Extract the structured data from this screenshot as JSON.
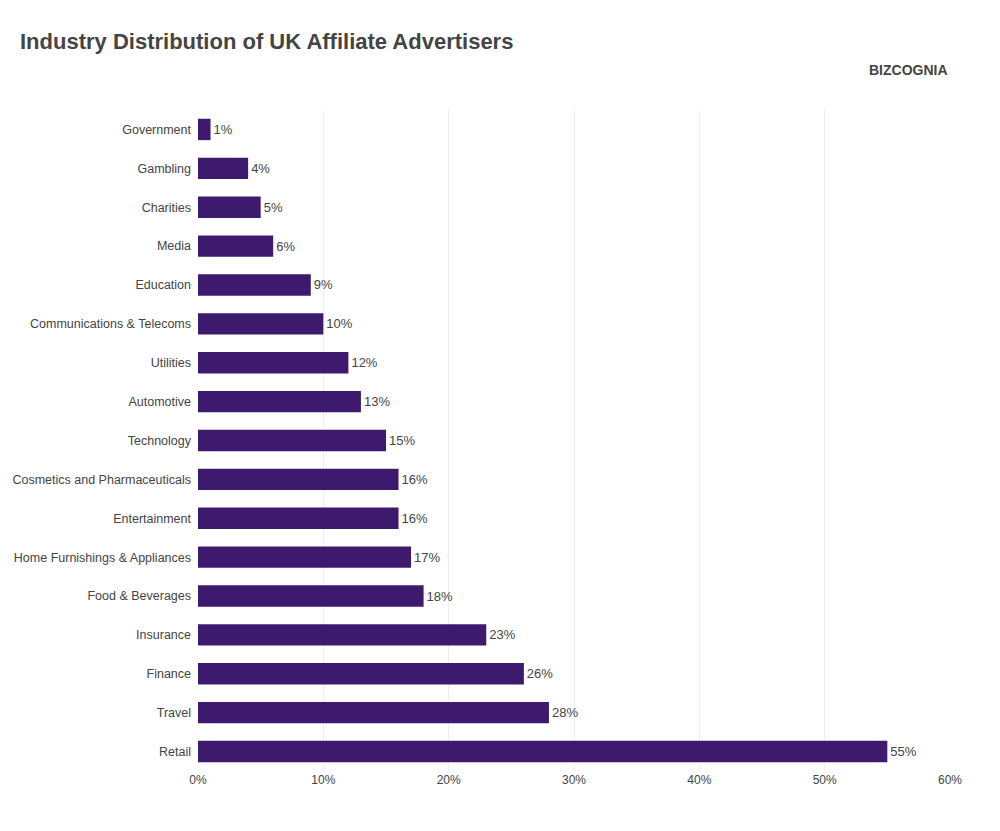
{
  "chart_data": {
    "type": "bar",
    "orientation": "horizontal",
    "title": "Industry Distribution of UK Affiliate Advertisers",
    "annotations": [
      "BIZCOGNIA"
    ],
    "categories": [
      "Government",
      "Gambling",
      "Charities",
      "Media",
      "Education",
      "Communications & Telecoms",
      "Utilities",
      "Automotive",
      "Technology",
      "Cosmetics and Pharmaceuticals",
      "Entertainment",
      "Home Furnishings & Appliances",
      "Food & Beverages",
      "Insurance",
      "Finance",
      "Travel",
      "Retail"
    ],
    "values": [
      1,
      4,
      5,
      6,
      9,
      10,
      12,
      13,
      15,
      16,
      16,
      17,
      18,
      23,
      26,
      28,
      55
    ],
    "value_labels": [
      "1%",
      "4%",
      "5%",
      "6%",
      "9%",
      "10%",
      "12%",
      "13%",
      "15%",
      "16%",
      "16%",
      "17%",
      "18%",
      "23%",
      "26%",
      "28%",
      "55%"
    ],
    "data_labels": true,
    "color": "#3d1a6e",
    "xlim": [
      0,
      60
    ],
    "xticks": [
      {
        "value": 0,
        "label": "0%"
      },
      {
        "value": 10,
        "label": "10%"
      },
      {
        "value": 20,
        "label": "20%"
      },
      {
        "value": 30,
        "label": "30%"
      },
      {
        "value": 40,
        "label": "40%"
      },
      {
        "value": 50,
        "label": "50%"
      },
      {
        "value": 60,
        "label": "60%"
      }
    ],
    "grid": true
  }
}
